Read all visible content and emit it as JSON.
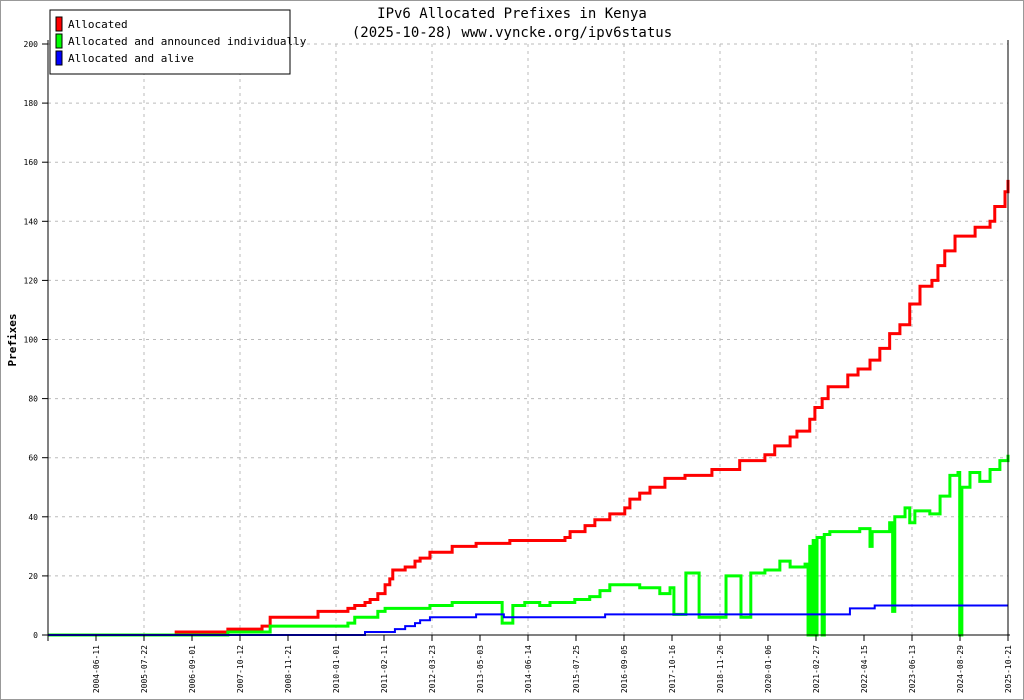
{
  "chart_data": {
    "type": "line",
    "title": "IPv6 Allocated Prefixes in Kenya",
    "subtitle": "(2025-10-28) www.vyncke.org/ipv6status",
    "xlabel": "",
    "ylabel": "Prefixes",
    "ylim": [
      0,
      200
    ],
    "xlim_year": [
      2003.33,
      2025.8
    ],
    "yticks": [
      0,
      20,
      40,
      60,
      80,
      100,
      120,
      140,
      160,
      180,
      200
    ],
    "xtick_labels": [
      "2004-06-11",
      "2005-07-22",
      "2006-09-01",
      "2007-10-12",
      "2008-11-21",
      "2010-01-01",
      "2011-02-11",
      "2012-03-23",
      "2013-05-03",
      "2014-06-14",
      "2015-07-25",
      "2016-09-05",
      "2017-10-16",
      "2018-11-26",
      "2020-01-06",
      "2021-02-27",
      "2022-04-15",
      "2023-06-13",
      "2024-08-29",
      "2025-10-21"
    ],
    "grid": true,
    "legend_position": "top-left",
    "series": [
      {
        "name": "Allocated",
        "color": "#ff0000",
        "points": [
          [
            2003.33,
            0
          ],
          [
            2006.33,
            1
          ],
          [
            2007.54,
            2
          ],
          [
            2008.34,
            3
          ],
          [
            2008.53,
            6
          ],
          [
            2009.65,
            8
          ],
          [
            2010.35,
            9
          ],
          [
            2010.51,
            10
          ],
          [
            2010.75,
            11
          ],
          [
            2010.87,
            12
          ],
          [
            2011.05,
            14
          ],
          [
            2011.22,
            17
          ],
          [
            2011.33,
            19
          ],
          [
            2011.4,
            22
          ],
          [
            2011.69,
            23
          ],
          [
            2011.92,
            25
          ],
          [
            2012.04,
            26
          ],
          [
            2012.27,
            28
          ],
          [
            2012.79,
            30
          ],
          [
            2013.35,
            31
          ],
          [
            2014.14,
            32
          ],
          [
            2015.43,
            33
          ],
          [
            2015.55,
            35
          ],
          [
            2015.9,
            37
          ],
          [
            2016.13,
            39
          ],
          [
            2016.48,
            41
          ],
          [
            2016.83,
            43
          ],
          [
            2016.95,
            46
          ],
          [
            2017.18,
            48
          ],
          [
            2017.42,
            50
          ],
          [
            2017.77,
            53
          ],
          [
            2018.24,
            54
          ],
          [
            2018.87,
            56
          ],
          [
            2019.52,
            59
          ],
          [
            2020.11,
            61
          ],
          [
            2020.34,
            64
          ],
          [
            2020.7,
            67
          ],
          [
            2020.86,
            69
          ],
          [
            2021.16,
            73
          ],
          [
            2021.28,
            77
          ],
          [
            2021.45,
            80
          ],
          [
            2021.59,
            84
          ],
          [
            2022.05,
            88
          ],
          [
            2022.29,
            90
          ],
          [
            2022.57,
            93
          ],
          [
            2022.8,
            97
          ],
          [
            2023.03,
            102
          ],
          [
            2023.27,
            105
          ],
          [
            2023.5,
            112
          ],
          [
            2023.74,
            118
          ],
          [
            2024.02,
            120
          ],
          [
            2024.16,
            125
          ],
          [
            2024.32,
            130
          ],
          [
            2024.56,
            135
          ],
          [
            2025.03,
            138
          ],
          [
            2025.38,
            140
          ],
          [
            2025.49,
            145
          ],
          [
            2025.73,
            150
          ],
          [
            2025.8,
            154
          ]
        ]
      },
      {
        "name": "Allocated and announced individually",
        "color": "#00ff00",
        "points": [
          [
            2003.33,
            0
          ],
          [
            2007.54,
            1
          ],
          [
            2008.53,
            3
          ],
          [
            2010.35,
            4
          ],
          [
            2010.51,
            6
          ],
          [
            2011.05,
            8
          ],
          [
            2011.22,
            9
          ],
          [
            2012.27,
            10
          ],
          [
            2012.79,
            11
          ],
          [
            2013.96,
            4
          ],
          [
            2014.21,
            10
          ],
          [
            2014.49,
            11
          ],
          [
            2014.84,
            10
          ],
          [
            2015.08,
            11
          ],
          [
            2015.66,
            12
          ],
          [
            2016.01,
            13
          ],
          [
            2016.25,
            15
          ],
          [
            2016.48,
            17
          ],
          [
            2017.18,
            16
          ],
          [
            2017.65,
            14
          ],
          [
            2017.89,
            16
          ],
          [
            2017.98,
            7
          ],
          [
            2018.26,
            21
          ],
          [
            2018.57,
            6
          ],
          [
            2019.2,
            20
          ],
          [
            2019.55,
            6
          ],
          [
            2019.78,
            21
          ],
          [
            2020.11,
            22
          ],
          [
            2020.46,
            25
          ],
          [
            2020.7,
            23
          ],
          [
            2021.05,
            24
          ],
          [
            2021.12,
            0
          ],
          [
            2021.16,
            30
          ],
          [
            2021.2,
            0
          ],
          [
            2021.24,
            32
          ],
          [
            2021.28,
            0
          ],
          [
            2021.33,
            33
          ],
          [
            2021.45,
            0
          ],
          [
            2021.5,
            34
          ],
          [
            2021.63,
            35
          ],
          [
            2022.33,
            36
          ],
          [
            2022.57,
            30
          ],
          [
            2022.62,
            35
          ],
          [
            2023.03,
            38
          ],
          [
            2023.1,
            8
          ],
          [
            2023.15,
            40
          ],
          [
            2023.39,
            43
          ],
          [
            2023.5,
            38
          ],
          [
            2023.62,
            42
          ],
          [
            2023.97,
            41
          ],
          [
            2024.21,
            47
          ],
          [
            2024.44,
            54
          ],
          [
            2024.63,
            55
          ],
          [
            2024.67,
            0
          ],
          [
            2024.72,
            50
          ],
          [
            2024.91,
            55
          ],
          [
            2025.14,
            52
          ],
          [
            2025.38,
            56
          ],
          [
            2025.61,
            59
          ],
          [
            2025.8,
            61
          ]
        ]
      },
      {
        "name": "Allocated and alive",
        "color": "#0000ff",
        "points": [
          [
            2003.33,
            0
          ],
          [
            2010.75,
            1
          ],
          [
            2011.45,
            2
          ],
          [
            2011.69,
            3
          ],
          [
            2011.92,
            4
          ],
          [
            2012.04,
            5
          ],
          [
            2012.27,
            6
          ],
          [
            2013.35,
            7
          ],
          [
            2014.0,
            6
          ],
          [
            2016.37,
            7
          ],
          [
            2021.16,
            7
          ],
          [
            2022.1,
            9
          ],
          [
            2022.68,
            10
          ],
          [
            2025.8,
            10
          ]
        ]
      }
    ]
  }
}
